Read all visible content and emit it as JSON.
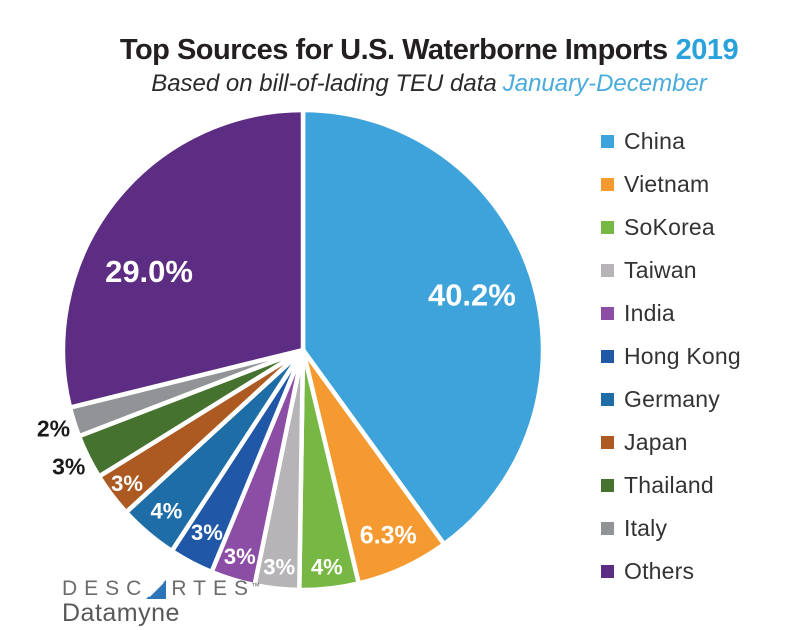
{
  "header": {
    "title": "Top Sources for U.S. Waterborne Imports",
    "title_year": "2019",
    "subtitle": "Based on bill-of-lading TEU data",
    "subtitle_period": "January-December"
  },
  "chart_data": {
    "type": "pie",
    "title": "Top Sources for U.S. Waterborne Imports 2019",
    "subtitle": "Based on bill-of-lading TEU data January-December",
    "start_angle_deg": 0,
    "direction": "clockwise",
    "legend_position": "right",
    "slice_border_color": "#ffffff",
    "slices": [
      {
        "name": "China",
        "value": 40.2,
        "label": "40.2%",
        "color": "#3fa3db",
        "label_color": "#ffffff",
        "label_r": 0.74,
        "label_size": 31
      },
      {
        "name": "Vietnam",
        "value": 6.3,
        "label": "6.3%",
        "color": "#f49a30",
        "label_color": "#ffffff",
        "label_r": 0.85,
        "label_size": 25
      },
      {
        "name": "SoKorea",
        "value": 4,
        "label": "4%",
        "color": "#76b843",
        "label_color": "#ffffff",
        "label_r": 0.91,
        "label_size": 22
      },
      {
        "name": "Taiwan",
        "value": 3,
        "label": "3%",
        "color": "#b6b4b7",
        "label_color": "#ffffff",
        "label_r": 0.91,
        "label_size": 22
      },
      {
        "name": "India",
        "value": 3,
        "label": "3%",
        "color": "#8c4ea5",
        "label_color": "#ffffff",
        "label_r": 0.9,
        "label_size": 22
      },
      {
        "name": "Hong Kong",
        "value": 3,
        "label": "3%",
        "color": "#2057a7",
        "label_color": "#ffffff",
        "label_r": 0.86,
        "label_size": 22
      },
      {
        "name": "Germany",
        "value": 4,
        "label": "4%",
        "color": "#1e6da7",
        "label_color": "#ffffff",
        "label_r": 0.88,
        "label_size": 22
      },
      {
        "name": "Japan",
        "value": 3,
        "label": "3%",
        "color": "#ac5a21",
        "label_color": "#ffffff",
        "label_r": 0.92,
        "label_size": 22
      },
      {
        "name": "Thailand",
        "value": 3,
        "label": "3%",
        "color": "#46722f",
        "label_color": "#1a1a1a",
        "label_r": 1.09,
        "label_size": 23
      },
      {
        "name": "Italy",
        "value": 2,
        "label": "2%",
        "color": "#929396",
        "label_color": "#1a1a1a",
        "label_r": 1.09,
        "label_size": 23
      },
      {
        "name": "Others",
        "value": 29.0,
        "label": "29.0%",
        "color": "#5c2d83",
        "label_color": "#ffffff",
        "label_r": 0.72,
        "label_size": 31,
        "label_angle_deg": 297
      }
    ]
  },
  "colors": {
    "title_text": "#231f20",
    "title_year": "#2ba2db",
    "subtitle_period": "#49acdc",
    "logo_gray": "#6b6c6e",
    "logo_triangle": "#2e74b9"
  },
  "logo": {
    "brand_prefix": "DESC",
    "brand_suffix": "RTES",
    "trademark": "™",
    "product": "Datamyne"
  }
}
